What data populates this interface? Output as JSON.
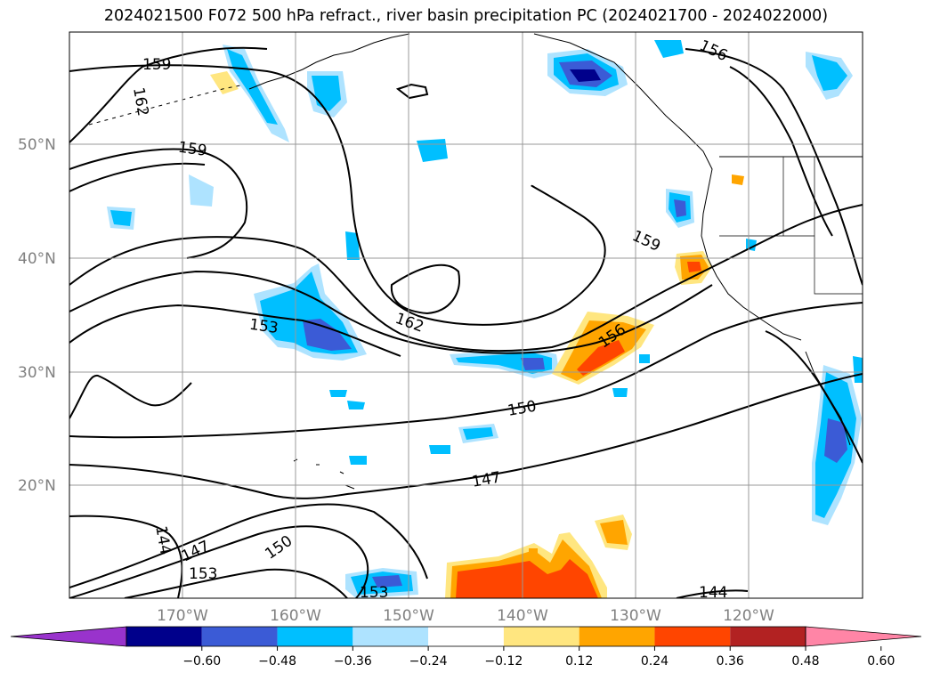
{
  "title": "2024021500 F072 500 hPa refract., river basin precipitation PC (2024021700 - 2024022000)",
  "lat_labels": [
    "50°N",
    "40°N",
    "30°N",
    "20°N"
  ],
  "lon_labels": [
    "170°W",
    "160°W",
    "150°W",
    "140°W",
    "130°W",
    "120°W"
  ],
  "contour_labels": [
    "159",
    "162",
    "159",
    "159",
    "162",
    "153",
    "156",
    "150",
    "147",
    "147",
    "144",
    "153",
    "150",
    "153",
    "144",
    "156"
  ],
  "colorbar": {
    "ticks": [
      "−0.60",
      "−0.48",
      "−0.36",
      "−0.24",
      "−0.12",
      "0.12",
      "0.24",
      "0.36",
      "0.48",
      "0.60"
    ],
    "colors": [
      "#9933cc",
      "#00008b",
      "#3b5bd6",
      "#00bfff",
      "#aee3ff",
      "#ffffff",
      "#ffe680",
      "#ffa500",
      "#ff4500",
      "#b22222",
      "#ff85a6"
    ]
  }
}
